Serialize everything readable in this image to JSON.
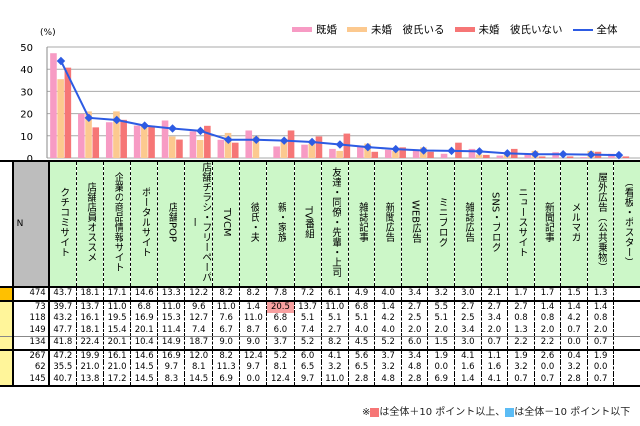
{
  "chart_data": {
    "type": "bar+line",
    "ylabel": "(%)",
    "ylim": [
      0,
      50
    ],
    "yticks": [
      0,
      10,
      20,
      30,
      40,
      50
    ],
    "grid": true,
    "legend": "top-right",
    "categories": [
      "クチコミサイト",
      "店舗店員オススメ",
      "企業の商品情報サイト",
      "ポータルサイト",
      "店舗POP",
      "店舗チラシ・フリーペーパー",
      "TVCM",
      "彼氏・夫",
      "親・家族",
      "TV番組",
      "友達・同僚・先輩・上司",
      "雑誌記事",
      "新聞広告",
      "WEB広告",
      "ミニブログ",
      "雑誌広告",
      "SNS・ブログ",
      "ニュースサイト",
      "新聞記事",
      "メルマガ",
      "屋外広告（公共乗物）"
    ],
    "series": [
      {
        "name": "既婚",
        "type": "bar",
        "color": "#f79bc4",
        "values": [
          47.2,
          19.9,
          16.1,
          14.6,
          16.9,
          12.0,
          8.2,
          12.4,
          5.2,
          6.0,
          4.1,
          5.6,
          3.7,
          3.4,
          1.9,
          4.1,
          1.1,
          1.9,
          2.6,
          0.4,
          1.9
        ]
      },
      {
        "name": "未婚　彼氏いる",
        "type": "bar",
        "color": "#fcc98f",
        "values": [
          35.5,
          21.0,
          21.0,
          14.5,
          9.7,
          8.1,
          11.3,
          9.7,
          8.1,
          6.5,
          3.2,
          6.5,
          3.2,
          4.8,
          0.0,
          1.6,
          1.6,
          3.2,
          0.0,
          3.2,
          0.0
        ]
      },
      {
        "name": "未婚　彼氏いない",
        "type": "bar",
        "color": "#f67676",
        "values": [
          40.7,
          13.8,
          17.2,
          14.5,
          8.3,
          14.5,
          6.9,
          0.0,
          12.4,
          9.7,
          11.0,
          2.8,
          4.8,
          2.8,
          6.9,
          1.4,
          4.1,
          0.7,
          0.7,
          2.8,
          0.7
        ]
      },
      {
        "name": "全体",
        "type": "line",
        "color": "#2d5be3",
        "values": [
          43.7,
          18.1,
          17.1,
          14.6,
          13.3,
          12.2,
          8.2,
          8.2,
          7.8,
          7.2,
          6.1,
          4.9,
          4.0,
          3.4,
          3.2,
          3.0,
          2.1,
          1.7,
          1.7,
          1.5,
          1.3
        ]
      }
    ]
  },
  "table": {
    "n_header": "N",
    "headers": [
      "クチコミサイト",
      "店舗店員オススメ",
      "企業の商品情報サイト",
      "ポータルサイト",
      "店舗POP",
      "店舗チラシ・フリーペーパー",
      "TVCM",
      "彼氏・夫",
      "親・家族",
      "TV番組",
      "友達・同僚・先輩・上司",
      "雑誌記事",
      "新聞広告",
      "WEB広告",
      "ミニブログ",
      "雑誌広告",
      "SNS・ブログ",
      "ニュースサイト",
      "新聞記事",
      "メルマガ",
      "屋外広告（公共乗物）",
      "（看板・ポスター）"
    ],
    "rows": [
      {
        "n": "474",
        "values": [
          "43.7",
          "18.1",
          "17.1",
          "14.6",
          "13.3",
          "12.2",
          "8.2",
          "8.2",
          "7.8",
          "7.2",
          "6.1",
          "4.9",
          "4.0",
          "3.4",
          "3.2",
          "3.0",
          "2.1",
          "1.7",
          "1.7",
          "1.5",
          "1.3"
        ]
      },
      {
        "n": "73",
        "values": [
          "39.7",
          "13.7",
          "11.0",
          "6.8",
          "11.0",
          "9.6",
          "11.0",
          "1.4",
          "20.5",
          "13.7",
          "11.0",
          "6.8",
          "1.4",
          "2.7",
          "5.5",
          "2.7",
          "2.7",
          "2.7",
          "1.4",
          "1.4",
          "1.4"
        ],
        "highlight_plus": [
          8
        ]
      },
      {
        "n": "118",
        "values": [
          "43.2",
          "16.1",
          "19.5",
          "16.9",
          "15.3",
          "12.7",
          "7.6",
          "11.0",
          "6.8",
          "5.1",
          "5.1",
          "5.1",
          "4.2",
          "2.5",
          "5.1",
          "2.5",
          "3.4",
          "0.8",
          "0.8",
          "4.2",
          "0.8"
        ]
      },
      {
        "n": "149",
        "values": [
          "47.7",
          "18.1",
          "15.4",
          "20.1",
          "11.4",
          "7.4",
          "6.7",
          "8.7",
          "6.0",
          "7.4",
          "2.7",
          "4.0",
          "4.0",
          "2.0",
          "2.0",
          "3.4",
          "2.0",
          "1.3",
          "2.0",
          "0.7",
          "2.0"
        ]
      },
      {
        "n": "134",
        "values": [
          "41.8",
          "22.4",
          "20.1",
          "10.4",
          "14.9",
          "18.7",
          "9.0",
          "9.0",
          "3.7",
          "5.2",
          "8.2",
          "4.5",
          "5.2",
          "6.0",
          "1.5",
          "3.0",
          "0.7",
          "2.2",
          "2.2",
          "0.0",
          "0.7"
        ]
      },
      {
        "n": "267",
        "values": [
          "47.2",
          "19.9",
          "16.1",
          "14.6",
          "16.9",
          "12.0",
          "8.2",
          "12.4",
          "5.2",
          "6.0",
          "4.1",
          "5.6",
          "3.7",
          "3.4",
          "1.9",
          "4.1",
          "1.1",
          "1.9",
          "2.6",
          "0.4",
          "1.9"
        ]
      },
      {
        "n": "62",
        "values": [
          "35.5",
          "21.0",
          "21.0",
          "14.5",
          "9.7",
          "8.1",
          "11.3",
          "9.7",
          "8.1",
          "6.5",
          "3.2",
          "6.5",
          "3.2",
          "4.8",
          "0.0",
          "1.6",
          "1.6",
          "3.2",
          "0.0",
          "3.2",
          "0.0"
        ]
      },
      {
        "n": "145",
        "values": [
          "40.7",
          "13.8",
          "17.2",
          "14.5",
          "8.3",
          "14.5",
          "6.9",
          "0.0",
          "12.4",
          "9.7",
          "11.0",
          "2.8",
          "4.8",
          "2.8",
          "6.9",
          "1.4",
          "4.1",
          "0.7",
          "0.7",
          "2.8",
          "0.7"
        ]
      }
    ]
  },
  "footnote": {
    "prefix": "※",
    "plus_text": "は全体＋10 ポイント以上、",
    "minus_text": "は全体－10 ポイント以下",
    "plus_color": "#f67676",
    "minus_color": "#5bbcf5"
  }
}
